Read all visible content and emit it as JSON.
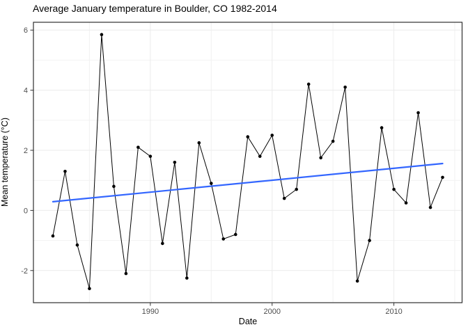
{
  "chart": {
    "title": "Average January temperature in Boulder, CO 1982-2014",
    "xlabel": "Date",
    "ylabel": "Mean temperature (°C)"
  },
  "chart_data": {
    "type": "line",
    "title": "Average January temperature in Boulder, CO 1982-2014",
    "xlabel": "Date",
    "ylabel": "Mean temperature (°C)",
    "x": [
      1982,
      1983,
      1984,
      1985,
      1986,
      1987,
      1988,
      1989,
      1990,
      1991,
      1992,
      1993,
      1994,
      1995,
      1996,
      1997,
      1998,
      1999,
      2000,
      2001,
      2002,
      2003,
      2004,
      2005,
      2006,
      2007,
      2008,
      2009,
      2010,
      2011,
      2012,
      2013,
      2014
    ],
    "values": [
      -0.85,
      1.3,
      -1.15,
      -2.6,
      5.85,
      0.8,
      -2.1,
      2.1,
      1.8,
      -1.1,
      1.6,
      -2.25,
      2.25,
      0.9,
      -0.95,
      -0.8,
      2.45,
      1.8,
      2.5,
      0.4,
      0.7,
      4.2,
      1.75,
      2.3,
      4.1,
      -2.35,
      -1.0,
      2.75,
      0.7,
      0.25,
      3.25,
      0.1,
      1.1
    ],
    "trend_line": {
      "kind": "linear-fit",
      "x": [
        1982,
        2014
      ],
      "y": [
        0.29,
        1.56
      ]
    },
    "x_major_ticks": [
      1990,
      2000,
      2010
    ],
    "x_minor_ticks": [
      1985,
      1995,
      2005,
      2015
    ],
    "y_major_ticks": [
      -2,
      0,
      2,
      4,
      6
    ],
    "y_minor_ticks": [
      -1,
      1,
      3,
      5
    ],
    "xlim": [
      1980.4,
      2015.6
    ],
    "ylim": [
      -3.07,
      6.26
    ],
    "grid": "on",
    "legend": "none",
    "colors": {
      "series": "#000000",
      "points": "#000000",
      "trend": "#3366FF",
      "grid_major": "#EBEBEB",
      "grid_minor": "#F2F2F2",
      "panel_border": "#2E2E2E",
      "tick_mark": "#333333",
      "axis_text": "#4D4D4D",
      "panel_bg": "#FFFFFF"
    }
  }
}
